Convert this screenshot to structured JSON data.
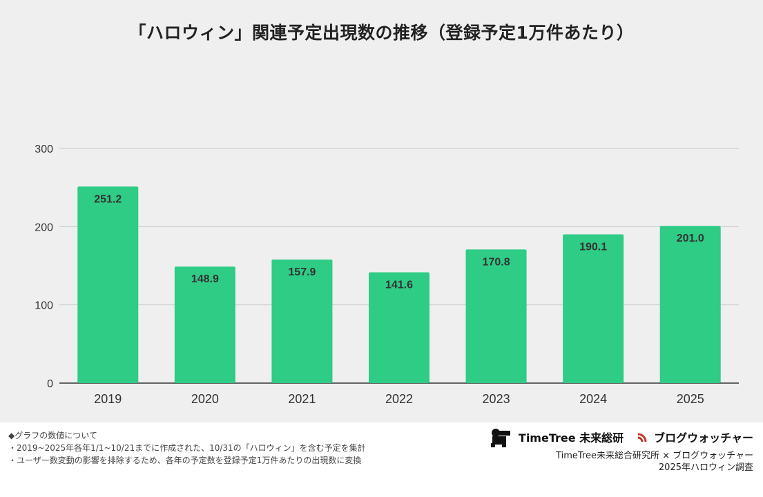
{
  "chart_data": {
    "type": "bar",
    "title": "「ハロウィン」関連予定出現数の推移（登録予定1万件あたり）",
    "categories": [
      "2019",
      "2020",
      "2021",
      "2022",
      "2023",
      "2024",
      "2025"
    ],
    "values": [
      251.2,
      148.9,
      157.9,
      141.6,
      170.8,
      190.1,
      201.0
    ],
    "value_labels": [
      "251.2",
      "148.9",
      "157.9",
      "141.6",
      "170.8",
      "190.1",
      "201.0"
    ],
    "yticks": [
      "0",
      "100",
      "200",
      "300"
    ],
    "ylim": [
      0,
      300
    ],
    "xlabel": "",
    "ylabel": "",
    "bar_color": "#2ecc85",
    "grid": true
  },
  "footer": {
    "heading": "◆グラフの数値について",
    "note1": "・2019~2025年各年1/1~10/21までに作成された、10/31の「ハロウィン」を含む予定を集計",
    "note2": "・ユーザー数変動の影響を排除するため、各年の予定数を登録予定1万件あたりの出現数に変換"
  },
  "logos": {
    "timetree": "TimeTree 未来総研",
    "blogwatcher": "ブログウォッチャー"
  },
  "credit": {
    "line1": "TimeTree未来総合研究所 × ブログウォッチャー",
    "line2": "2025年ハロウィン調査"
  }
}
